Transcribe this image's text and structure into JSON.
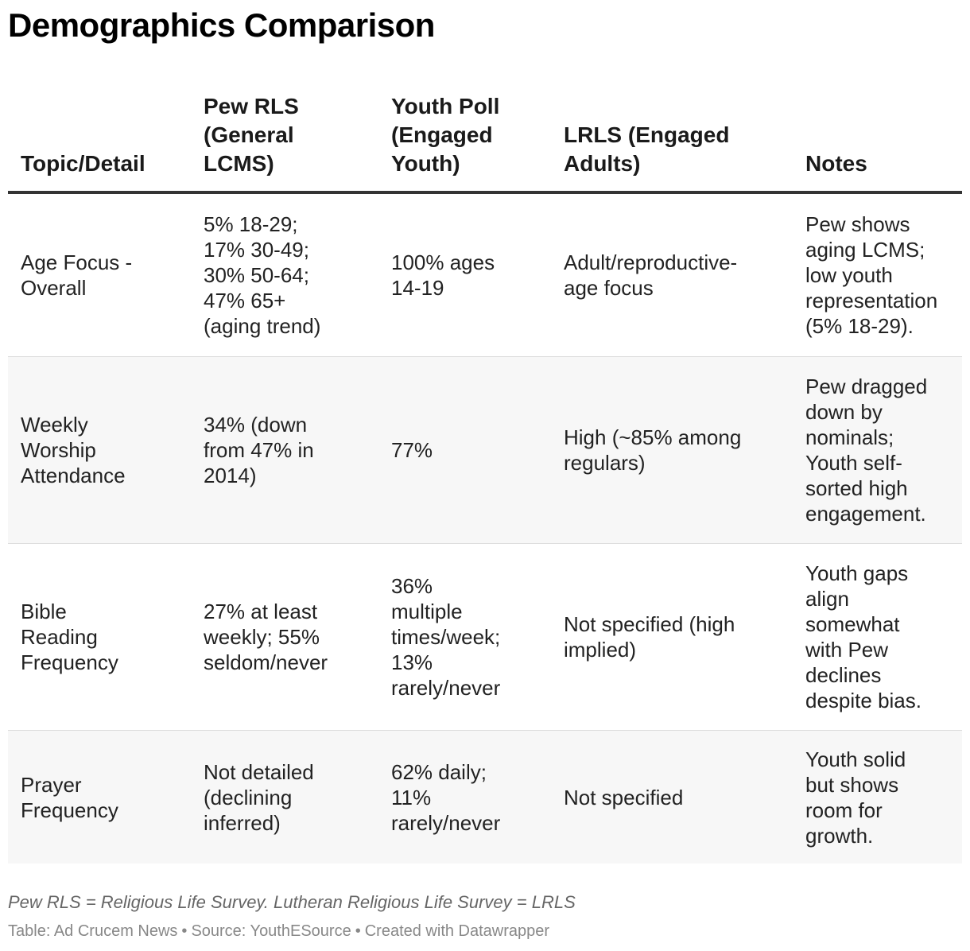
{
  "chart_data": {
    "type": "table",
    "title": "Demographics Comparison",
    "columns": [
      "Topic/Detail",
      "Pew RLS\n(General\nLCMS)",
      "Youth Poll\n(Engaged\nYouth)",
      "LRLS (Engaged\nAdults)",
      "Notes"
    ],
    "rows": [
      {
        "topic": "Age Focus -\nOverall",
        "pew": "5% 18-29;\n17% 30-49;\n30% 50-64;\n47% 65+\n(aging trend)",
        "youth": "100% ages\n14-19",
        "lrls": "Adult/reproductive-\nage focus",
        "notes": "Pew shows\naging LCMS;\nlow youth\nrepresentation\n(5% 18-29)."
      },
      {
        "topic": "Weekly\nWorship\nAttendance",
        "pew": "34% (down\nfrom 47% in\n2014)",
        "youth": "77%",
        "lrls": "High (~85% among\nregulars)",
        "notes": "Pew dragged\ndown by\nnominals;\nYouth self-\nsorted high\nengagement."
      },
      {
        "topic": "Bible\nReading\nFrequency",
        "pew": "27% at least\nweekly; 55%\nseldom/never",
        "youth": "36%\nmultiple\ntimes/week;\n13%\nrarely/never",
        "lrls": "Not specified (high\nimplied)",
        "notes": "Youth gaps\nalign\nsomewhat\nwith Pew\ndeclines\ndespite bias."
      },
      {
        "topic": "Prayer\nFrequency",
        "pew": "Not detailed\n(declining\ninferred)",
        "youth": "62% daily;\n11%\nrarely/never",
        "lrls": "Not specified",
        "notes": "Youth solid\nbut shows\nroom for\ngrowth."
      }
    ]
  },
  "footer": {
    "note": "Pew RLS = Religious Life Survey. Lutheran Religious Life Survey = LRLS",
    "table_credit": "Table: Ad Crucem News",
    "source": "Source: YouthESource",
    "created_with": "Created with Datawrapper",
    "separator": "•"
  }
}
